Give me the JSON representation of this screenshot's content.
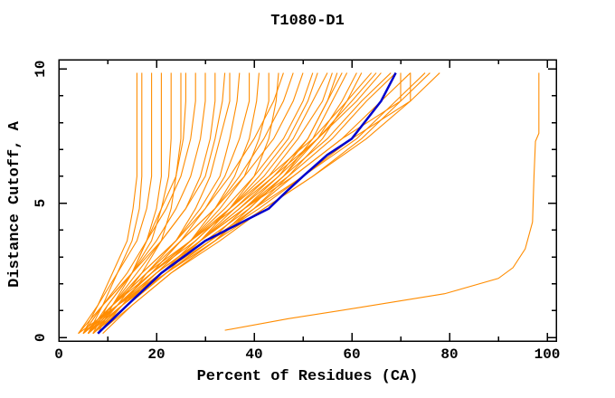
{
  "window": {
    "title": "T1080-D1"
  },
  "chart_data": {
    "type": "line",
    "title": "T1080-D1",
    "xlabel": "Percent of Residues (CA)",
    "ylabel": "Distance Cutoff, A",
    "xlim": [
      0,
      101.85
    ],
    "ylim": [
      -0.13,
      10.34
    ],
    "grid": false,
    "legend": "none",
    "xticks": {
      "major": [
        0,
        20,
        40,
        60,
        80,
        100
      ],
      "minor": [
        10,
        30,
        50,
        70,
        90
      ],
      "labels": [
        "0",
        "20",
        "40",
        "60",
        "80",
        "100"
      ]
    },
    "yticks": {
      "major": [
        0,
        5,
        10
      ],
      "minor": [
        1,
        2,
        3,
        4,
        6,
        7,
        8,
        9
      ],
      "labels": [
        "0",
        "5",
        "10"
      ]
    },
    "colors": {
      "model": "#ff8c00",
      "highlight": "#0000cd",
      "axis": "#000000",
      "background": "#ffffff"
    },
    "cutoff_grid": [
      0.15,
      1.2,
      2.4,
      3.6,
      4.8,
      6.0,
      7.4,
      8.8,
      9.85
    ],
    "highlight_series": {
      "name": "selected-model",
      "points": [
        [
          8,
          0.15
        ],
        [
          10,
          0.5
        ],
        [
          14,
          1.2
        ],
        [
          17.5,
          1.8
        ],
        [
          21,
          2.4
        ],
        [
          30,
          3.6
        ],
        [
          43,
          4.8
        ],
        [
          47,
          5.5
        ],
        [
          50,
          6.0
        ],
        [
          55,
          6.8
        ],
        [
          60,
          7.4
        ],
        [
          63,
          8.1
        ],
        [
          66,
          8.8
        ],
        [
          69,
          9.85
        ]
      ]
    },
    "outlier_series": {
      "name": "outlier-model",
      "points": [
        [
          34,
          0.27
        ],
        [
          47,
          0.7
        ],
        [
          61,
          1.1
        ],
        [
          79,
          1.63
        ],
        [
          90,
          2.2
        ],
        [
          93,
          2.6
        ],
        [
          95.5,
          3.3
        ],
        [
          97,
          4.3
        ],
        [
          97.3,
          6.0
        ],
        [
          97.6,
          7.3
        ],
        [
          98.3,
          7.6
        ],
        [
          98.3,
          9.85
        ]
      ]
    },
    "model_series": [
      {
        "percents": [
          5,
          8,
          11,
          14,
          15.2,
          16,
          16,
          16,
          16
        ]
      },
      {
        "percents": [
          6,
          9,
          12,
          15,
          16.5,
          17,
          17,
          17,
          17
        ]
      },
      {
        "percents": [
          4,
          8,
          12,
          16,
          18,
          19,
          19,
          19,
          19
        ]
      },
      {
        "percents": [
          7,
          10,
          15,
          18,
          20,
          21,
          21,
          21,
          21
        ]
      },
      {
        "percents": [
          5,
          9,
          15,
          19,
          21,
          22.5,
          23,
          23,
          23
        ]
      },
      {
        "percents": [
          6,
          11,
          16,
          21,
          23,
          24,
          25,
          25,
          25
        ]
      },
      {
        "percents": [
          8,
          11,
          15,
          18,
          21,
          24,
          25.5,
          26,
          26
        ]
      },
      {
        "percents": [
          5,
          9,
          14,
          18,
          22,
          25,
          27,
          28,
          28
        ]
      },
      {
        "percents": [
          6,
          10,
          15,
          20,
          24,
          27,
          29,
          30,
          30
        ]
      },
      {
        "percents": [
          7,
          12,
          17,
          21,
          26,
          29,
          31,
          32,
          32
        ]
      },
      {
        "percents": [
          4,
          9,
          15,
          21,
          26,
          30,
          32,
          33.5,
          34
        ]
      },
      {
        "percents": [
          8,
          13,
          18,
          24,
          28,
          31,
          33,
          35,
          35
        ]
      },
      {
        "percents": [
          5,
          11,
          17,
          24,
          29,
          33,
          35,
          36.5,
          37
        ]
      },
      {
        "percents": [
          6,
          12,
          19,
          25,
          30,
          34,
          37,
          39,
          39
        ]
      },
      {
        "percents": [
          7,
          13,
          20,
          27,
          32,
          36,
          39,
          40.5,
          41
        ]
      },
      {
        "percents": [
          5,
          12,
          19,
          27,
          33,
          38,
          41,
          43,
          43
        ]
      },
      {
        "percents": [
          8,
          14,
          22,
          29,
          35,
          40,
          43,
          44.5,
          45
        ]
      },
      {
        "percents": [
          6,
          11,
          17,
          24,
          30,
          35,
          40,
          44,
          46
        ]
      },
      {
        "percents": [
          7,
          12,
          19,
          25,
          32,
          37,
          42,
          46,
          48
        ]
      },
      {
        "percents": [
          5,
          11,
          18,
          25,
          32,
          38,
          44,
          48,
          50
        ]
      },
      {
        "percents": [
          6,
          12,
          19,
          27,
          34,
          40,
          46,
          50,
          52
        ]
      },
      {
        "percents": [
          8,
          14,
          21,
          28,
          35,
          41,
          47,
          51,
          53
        ]
      },
      {
        "percents": [
          5,
          11,
          19,
          28,
          35,
          42,
          48,
          52,
          55
        ]
      },
      {
        "percents": [
          7,
          13,
          21,
          29,
          36,
          43,
          49,
          54,
          56
        ]
      },
      {
        "percents": [
          6,
          13,
          21,
          29,
          37,
          44,
          51,
          55,
          58
        ]
      },
      {
        "percents": [
          9,
          15,
          23,
          32,
          39,
          46,
          52,
          56,
          59
        ]
      },
      {
        "percents": [
          5,
          12,
          21,
          30,
          39,
          46,
          53,
          58,
          61
        ]
      },
      {
        "percents": [
          7,
          14,
          22,
          32,
          40,
          47,
          54,
          59,
          62
        ]
      },
      {
        "percents": [
          6,
          12,
          19,
          27,
          35,
          43,
          52,
          59,
          64
        ]
      },
      {
        "percents": [
          8,
          14,
          21,
          29,
          37,
          45,
          53,
          60,
          65
        ]
      },
      {
        "percents": [
          5,
          11,
          18,
          27,
          36,
          44,
          53,
          61,
          66
        ]
      },
      {
        "percents": [
          7,
          13,
          20,
          29,
          38,
          46,
          55,
          62,
          68
        ]
      },
      {
        "percents": [
          6,
          12,
          20,
          29,
          38,
          47,
          56,
          63,
          69
        ]
      },
      {
        "percents": [
          8,
          14,
          22,
          31,
          40,
          48,
          58,
          70,
          70
        ]
      },
      {
        "percents": [
          5,
          12,
          20,
          29,
          38,
          48,
          58,
          66,
          72
        ]
      },
      {
        "percents": [
          7,
          14,
          22,
          31,
          41,
          50,
          60,
          72,
          72
        ]
      },
      {
        "percents": [
          6,
          13,
          21,
          31,
          40,
          50,
          61,
          69,
          75
        ]
      },
      {
        "percents": [
          8,
          15,
          23,
          33,
          42,
          52,
          62,
          70,
          76
        ]
      },
      {
        "percents": [
          6,
          13,
          22,
          32,
          42,
          52,
          63,
          72,
          78
        ]
      },
      {
        "percents": [
          4,
          12,
          22,
          31,
          38,
          45,
          51,
          55,
          57
        ]
      }
    ]
  }
}
